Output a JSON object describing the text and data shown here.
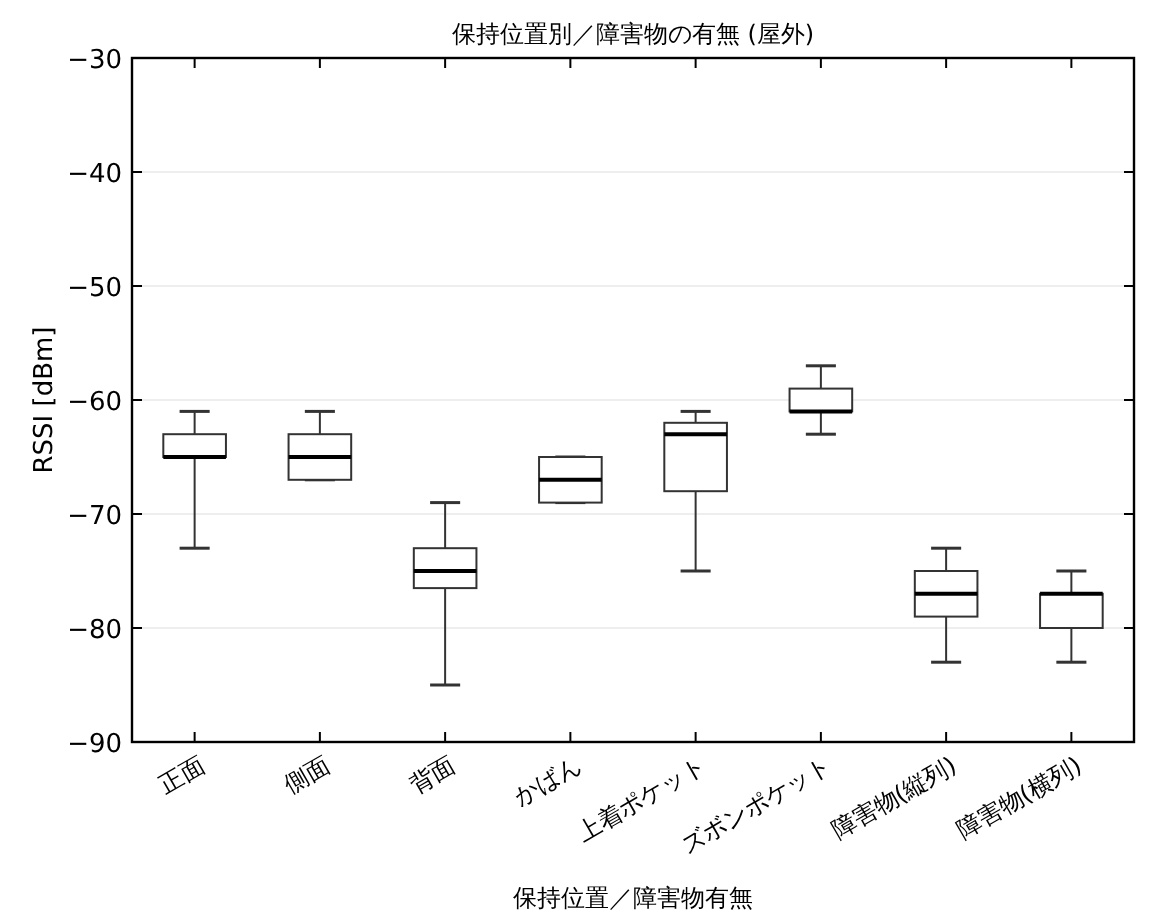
{
  "chart_data": {
    "type": "box",
    "title": "保持位置別／障害物の有無 (屋外)",
    "xlabel": "保持位置／障害物有無",
    "ylabel": "RSSI [dBm]",
    "categories": [
      "正面",
      "側面",
      "背面",
      "かばん",
      "上着ポケット",
      "ズボンポケット",
      "障害物(縦列)",
      "障害物(横列)"
    ],
    "boxes": [
      {
        "low": -73,
        "q1": -65,
        "median": -65,
        "q3": -63,
        "high": -61
      },
      {
        "low": -67,
        "q1": -67,
        "median": -65,
        "q3": -63,
        "high": -61
      },
      {
        "low": -85,
        "q1": -76.5,
        "median": -75,
        "q3": -73,
        "high": -69
      },
      {
        "low": -69,
        "q1": -69,
        "median": -67,
        "q3": -65,
        "high": -65
      },
      {
        "low": -75,
        "q1": -68,
        "median": -63,
        "q3": -62,
        "high": -61
      },
      {
        "low": -63,
        "q1": -61,
        "median": -61,
        "q3": -59,
        "high": -57
      },
      {
        "low": -83,
        "q1": -79,
        "median": -77,
        "q3": -75,
        "high": -73
      },
      {
        "low": -83,
        "q1": -80,
        "median": -77,
        "q3": -77,
        "high": -75
      }
    ],
    "color": "#333333",
    "ylim": [
      -90,
      -30
    ],
    "yticks": [
      -90,
      -80,
      -70,
      -60,
      -50,
      -40,
      -30
    ],
    "grid": "y"
  }
}
